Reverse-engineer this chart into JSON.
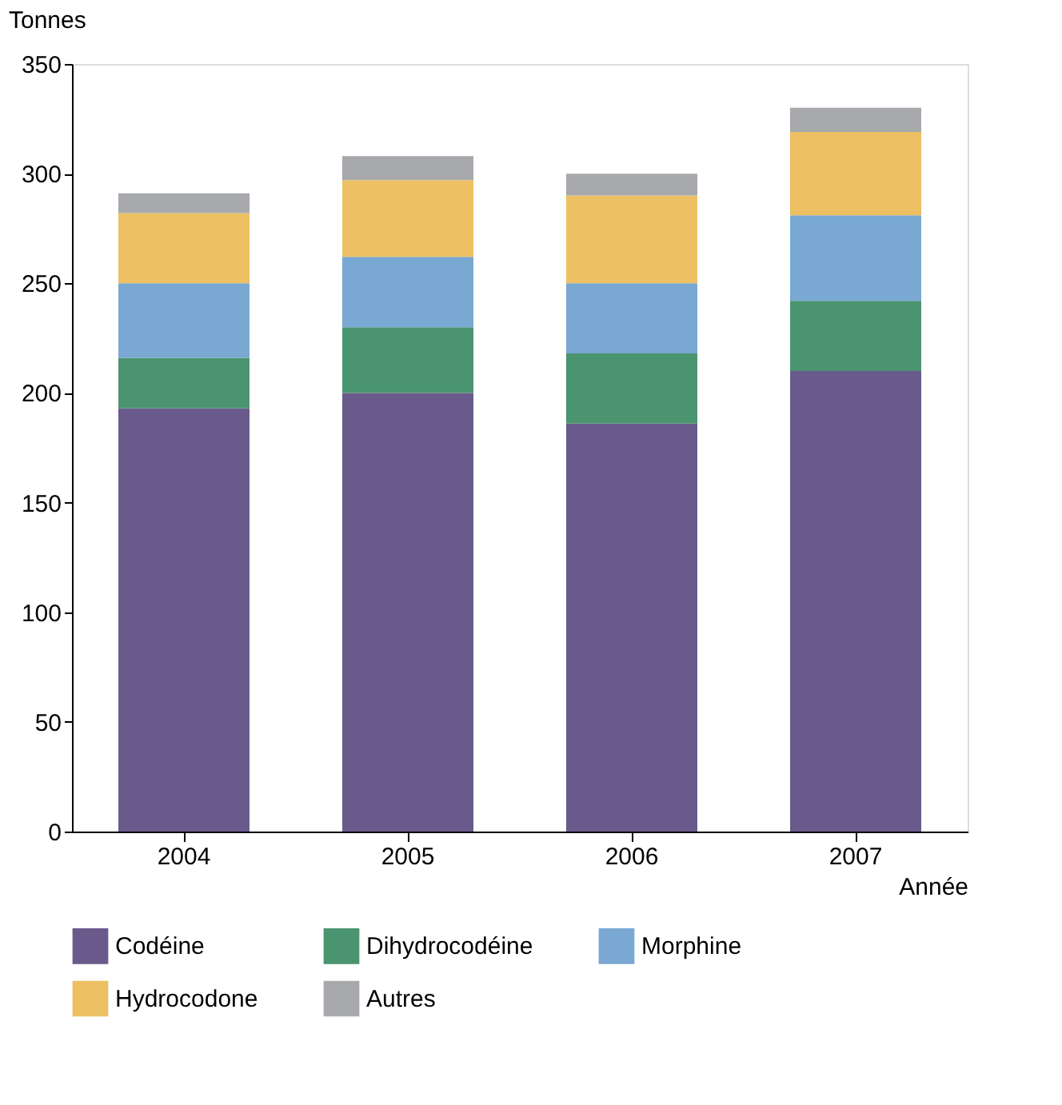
{
  "chart_data": {
    "type": "bar",
    "stacked": true,
    "xlabel": "Année",
    "ylabel": "Tonnes",
    "categories": [
      "2004",
      "2005",
      "2006",
      "2007"
    ],
    "ylim": [
      0,
      350
    ],
    "yticks": [
      0,
      50,
      100,
      150,
      200,
      250,
      300,
      350
    ],
    "grid": false,
    "legend": "bottom",
    "series": [
      {
        "name": "Codéine",
        "color": "#6a5a8c",
        "values": [
          193,
          200,
          186,
          210
        ]
      },
      {
        "name": "Dihydrocodéine",
        "color": "#4a9470",
        "values": [
          23,
          30,
          32,
          32
        ]
      },
      {
        "name": "Morphine",
        "color": "#79a8d2",
        "values": [
          34,
          32,
          32,
          39
        ]
      },
      {
        "name": "Hydrocodone",
        "color": "#ecc063",
        "values": [
          32,
          35,
          40,
          38
        ]
      },
      {
        "name": "Autres",
        "color": "#a7a9ac",
        "values": [
          9,
          11,
          10,
          11
        ]
      }
    ]
  }
}
